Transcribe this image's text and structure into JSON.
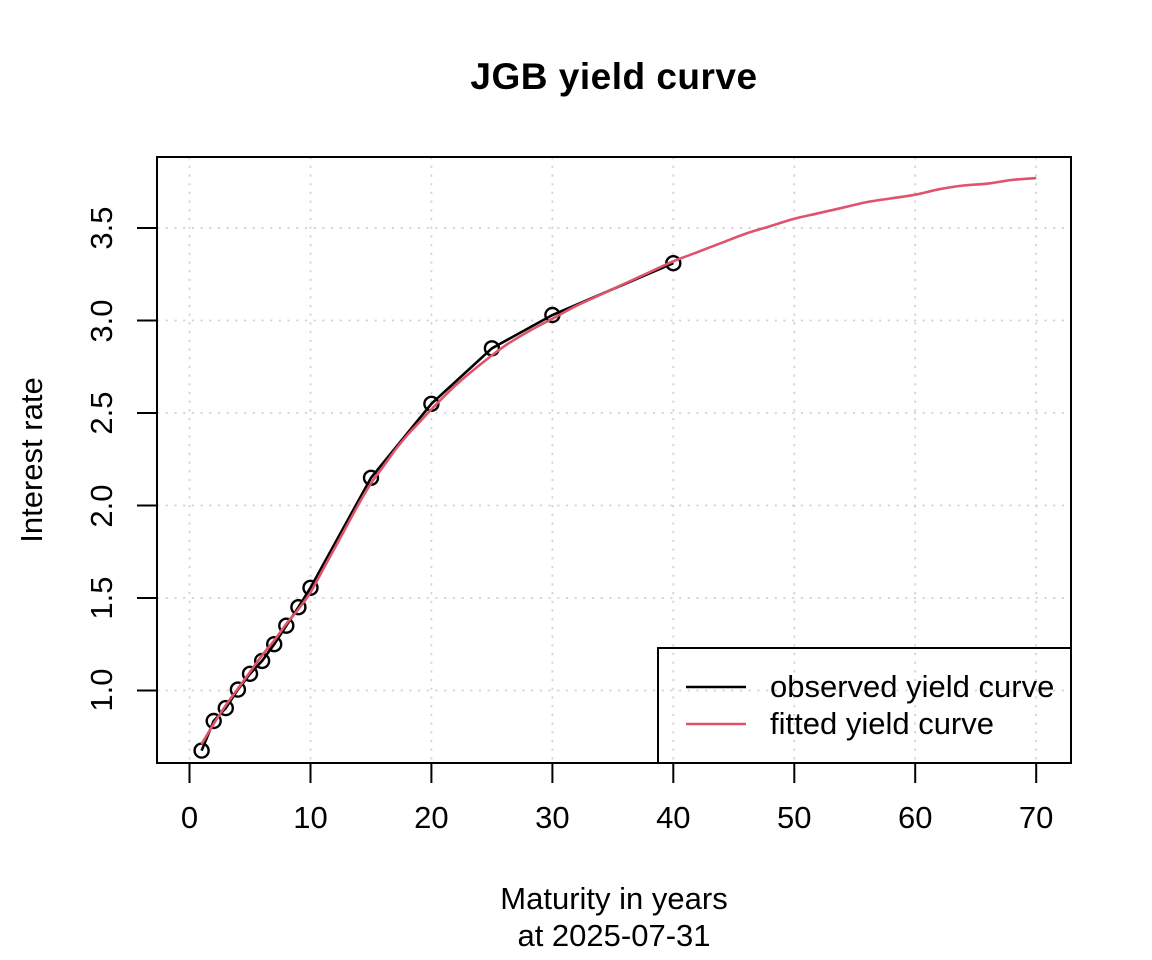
{
  "chart_data": {
    "type": "line",
    "title": "JGB yield curve",
    "xlabel": "Maturity in years",
    "xlabel_line2": "at 2025-07-31",
    "ylabel": "Interest rate",
    "x_ticks": [
      0,
      10,
      20,
      30,
      40,
      50,
      60,
      70
    ],
    "x_tick_labels": [
      "0",
      "10",
      "20",
      "30",
      "40",
      "50",
      "60",
      "70"
    ],
    "y_ticks": [
      1.0,
      1.5,
      2.0,
      2.5,
      3.0,
      3.5
    ],
    "y_tick_labels": [
      "1.0",
      "1.5",
      "2.0",
      "2.5",
      "3.0",
      "3.5"
    ],
    "xlim": [
      -2.69,
      72.88
    ],
    "ylim": [
      0.608,
      3.884
    ],
    "grid": true,
    "grid_color": "#d3d3d3",
    "grid_style": "dotted",
    "background": "#ffffff",
    "axis_color": "#000000",
    "legend": {
      "position": "bottom-right",
      "items": [
        {
          "label": "observed yield curve",
          "color": "#000000"
        },
        {
          "label": "fitted yield curve",
          "color": "#df536b"
        }
      ]
    },
    "series": [
      {
        "name": "observed yield curve",
        "color": "#000000",
        "marker": "open-circle",
        "smooth": false,
        "x": [
          1,
          2,
          3,
          4,
          5,
          6,
          7,
          8,
          9,
          10,
          15,
          20,
          25,
          30,
          40
        ],
        "y": [
          0.675,
          0.835,
          0.905,
          1.005,
          1.09,
          1.16,
          1.25,
          1.35,
          1.45,
          1.555,
          2.15,
          2.55,
          2.85,
          3.03,
          3.31
        ]
      },
      {
        "name": "fitted yield curve",
        "color": "#df536b",
        "marker": "none",
        "smooth": true,
        "x": [
          1,
          2,
          3,
          4,
          5,
          6,
          7,
          8,
          9,
          10,
          11,
          12,
          13,
          14,
          15,
          16,
          17,
          18,
          19,
          20,
          22,
          24,
          26,
          28,
          30,
          32,
          34,
          36,
          38,
          40,
          42,
          44,
          46,
          48,
          50,
          52,
          54,
          56,
          58,
          60,
          62,
          64,
          66,
          68,
          70
        ],
        "y": [
          0.71,
          0.82,
          0.92,
          1.01,
          1.1,
          1.19,
          1.27,
          1.36,
          1.44,
          1.53,
          1.65,
          1.77,
          1.89,
          2.01,
          2.12,
          2.21,
          2.3,
          2.38,
          2.45,
          2.52,
          2.65,
          2.76,
          2.86,
          2.94,
          3.01,
          3.08,
          3.14,
          3.2,
          3.26,
          3.32,
          3.37,
          3.42,
          3.47,
          3.51,
          3.55,
          3.58,
          3.61,
          3.64,
          3.66,
          3.68,
          3.71,
          3.73,
          3.74,
          3.76,
          3.77
        ]
      }
    ]
  }
}
